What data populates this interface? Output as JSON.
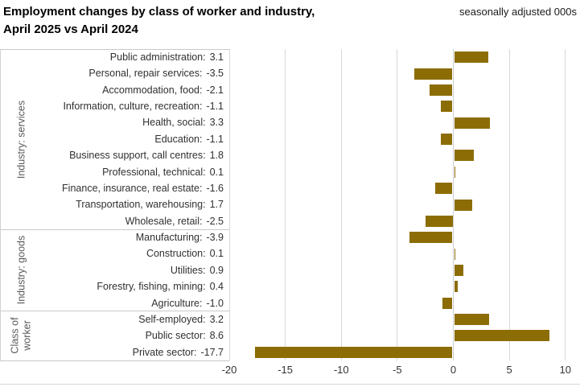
{
  "header": {
    "title_line1": "Employment changes by class of worker and industry,",
    "title_line2": "April 2025 vs April 2024",
    "note": "seasonally adjusted 000s"
  },
  "chart_data": {
    "type": "bar",
    "orientation": "horizontal",
    "title": "Employment changes by class of worker and industry, April 2025 vs April 2024",
    "units": "seasonally adjusted 000s",
    "xlim": [
      -20,
      10
    ],
    "x_ticks": [
      -20,
      -15,
      -10,
      -5,
      0,
      5,
      10
    ],
    "x_tick_labels": [
      "-20",
      "-15",
      "-10",
      "-5",
      "0",
      "5",
      "10"
    ],
    "grid": "vertical",
    "legend": "none",
    "bar_color": "#8C6D05",
    "groups": [
      {
        "label": "Industry: services",
        "items": [
          {
            "label": "Public administration:",
            "value": 3.1,
            "display": "3.1"
          },
          {
            "label": "Personal, repair services:",
            "value": -3.5,
            "display": "-3.5"
          },
          {
            "label": "Accommodation, food:",
            "value": -2.1,
            "display": "-2.1"
          },
          {
            "label": "Information, culture, recreation:",
            "value": -1.1,
            "display": "-1.1"
          },
          {
            "label": "Health, social:",
            "value": 3.3,
            "display": "3.3"
          },
          {
            "label": "Education:",
            "value": -1.1,
            "display": "-1.1"
          },
          {
            "label": "Business support, call centres:",
            "value": 1.8,
            "display": "1.8"
          },
          {
            "label": "Professional, technical:",
            "value": 0.1,
            "display": "0.1"
          },
          {
            "label": "Finance, insurance, real estate:",
            "value": -1.6,
            "display": "-1.6"
          },
          {
            "label": "Transportation, warehousing:",
            "value": 1.7,
            "display": "1.7"
          },
          {
            "label": "Wholesale, retail:",
            "value": -2.5,
            "display": "-2.5"
          }
        ]
      },
      {
        "label": "Industry: goods",
        "items": [
          {
            "label": "Manufacturing:",
            "value": -3.9,
            "display": "-3.9"
          },
          {
            "label": "Construction:",
            "value": 0.1,
            "display": "0.1"
          },
          {
            "label": "Utilities:",
            "value": 0.9,
            "display": "0.9"
          },
          {
            "label": "Forestry, fishing, mining:",
            "value": 0.4,
            "display": "0.4"
          },
          {
            "label": "Agriculture:",
            "value": -1.0,
            "display": "-1.0"
          }
        ]
      },
      {
        "label": "Class of\nworker",
        "items": [
          {
            "label": "Self-employed:",
            "value": 3.2,
            "display": "3.2"
          },
          {
            "label": "Public sector:",
            "value": 8.6,
            "display": "8.6"
          },
          {
            "label": "Private sector:",
            "value": -17.7,
            "display": "-17.7"
          }
        ]
      }
    ]
  }
}
